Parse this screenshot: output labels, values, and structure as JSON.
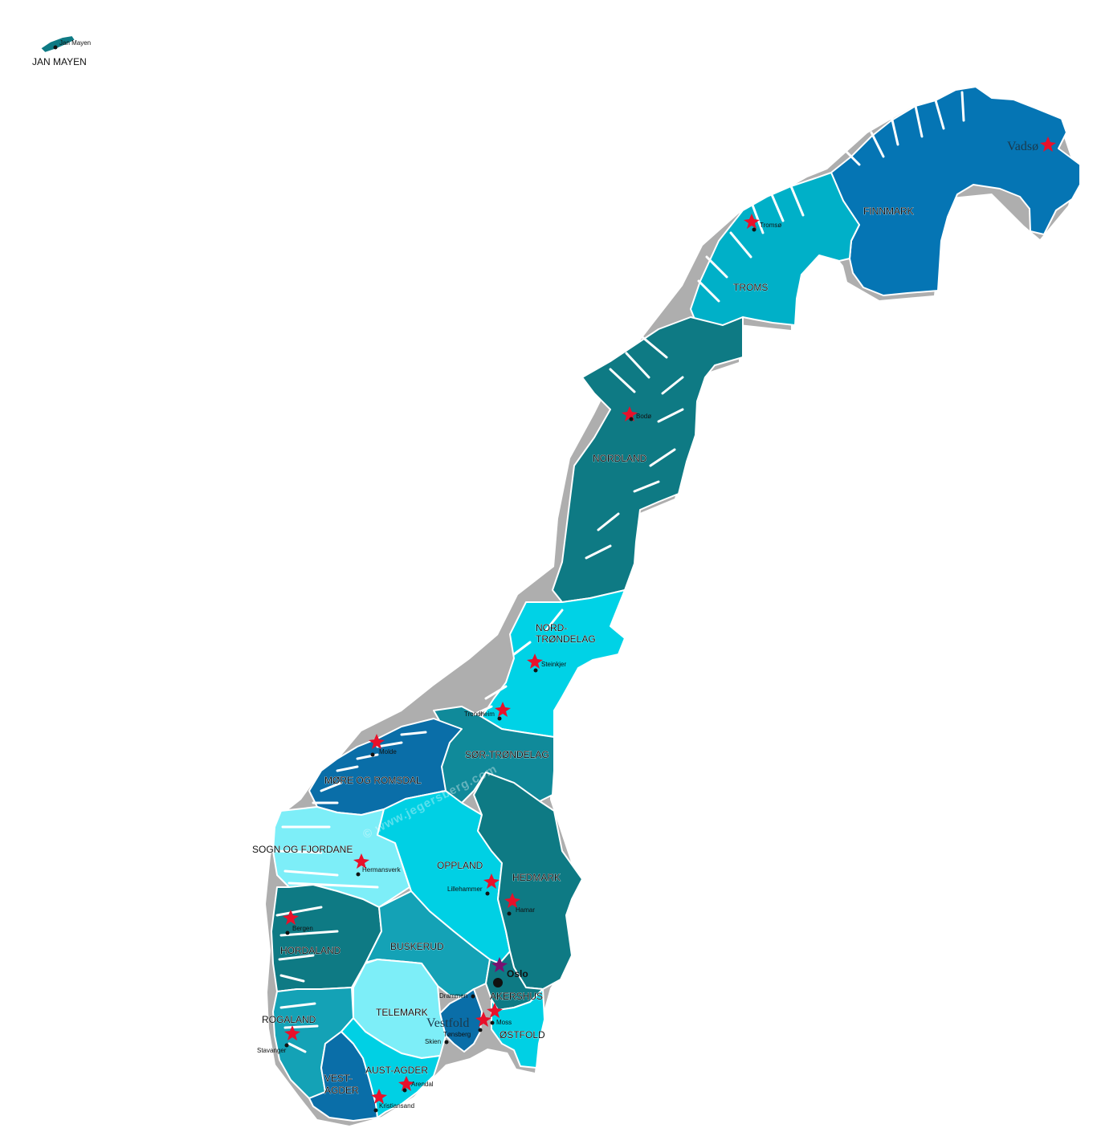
{
  "title": "",
  "watermark": "© www.jegersberg.com",
  "colors": {
    "finnmark": "#0575b4",
    "troms": "#00b0c8",
    "nordland": "#0e7a84",
    "nord_trondelag": "#00d2e6",
    "sor_trondelag": "#108a9a",
    "more_og_romsdal": "#0a6ea8",
    "sogn_og_fjordane": "#7deef8",
    "oppland": "#00d0e4",
    "hedmark": "#0e7a84",
    "hordaland": "#0e7a84",
    "buskerud": "#14a2b6",
    "telemark": "#7deef8",
    "akershus": "#0e7a84",
    "vestfold": "#0a6ea8",
    "ostfold": "#00d0e4",
    "rogaland": "#14a2b6",
    "vest_agder": "#0a6ea8",
    "aust_agder": "#00d0e4",
    "jan_mayen": "#0e7a84",
    "city_marker": "#e8102a",
    "capital_marker": "#7a1070"
  },
  "regions": {
    "jan_mayen": "JAN MAYEN",
    "finnmark": "FINNMARK",
    "troms": "TROMS",
    "nordland": "NORDLAND",
    "nord_trondelag_1": "NORD-",
    "nord_trondelag_2": "TRØNDELAG",
    "sor_trondelag": "SØR-TRØNDELAG",
    "more_og_romsdal": "MØRE OG ROMSDAL",
    "sogn_og_fjordane": "SOGN OG FJORDANE",
    "oppland": "OPPLAND",
    "hedmark": "HEDMARK",
    "hordaland": "HORDALAND",
    "buskerud": "BUSKERUD",
    "telemark": "TELEMARK",
    "akershus": "AKERSHUS",
    "ostfold": "ØSTFOLD",
    "rogaland": "ROGALAND",
    "vest_agder_1": "VEST-",
    "vest_agder_2": "AGDER",
    "aust_agder": "AUST-AGDER",
    "vestfold": "Vestfold"
  },
  "cities": {
    "jan_mayen": "Jan Mayen",
    "vadso": "Vadsø",
    "tromso": "Tromsø",
    "bodo": "Bodø",
    "steinkjer": "Steinkjer",
    "trondheim": "Trondheim",
    "molde": "Molde",
    "hermansverk": "Hermansverk",
    "lillehammer": "Lillehammer",
    "hamar": "Hamar",
    "bergen": "Bergen",
    "oslo": "Oslo",
    "drammen": "Drammen",
    "moss": "Moss",
    "tonsberg": "Tønsberg",
    "skien": "Skien",
    "stavanger": "Stavanger",
    "arendal": "Arendal",
    "kristiansand": "Kristiansand"
  }
}
